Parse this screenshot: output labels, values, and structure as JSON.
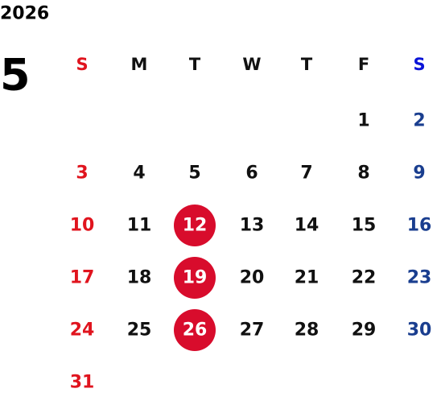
{
  "year": "2026",
  "month": "5",
  "weekdays": [
    "S",
    "M",
    "T",
    "W",
    "T",
    "F",
    "S"
  ],
  "weeks": [
    [
      null,
      null,
      null,
      null,
      null,
      1,
      2
    ],
    [
      3,
      4,
      5,
      6,
      7,
      8,
      9
    ],
    [
      10,
      11,
      12,
      13,
      14,
      15,
      16
    ],
    [
      17,
      18,
      19,
      20,
      21,
      22,
      23
    ],
    [
      24,
      25,
      26,
      27,
      28,
      29,
      30
    ],
    [
      31,
      null,
      null,
      null,
      null,
      null,
      null
    ]
  ],
  "marked_days": [
    12,
    19,
    26
  ],
  "colors": {
    "sunday": "#e0141e",
    "saturday_header": "#0a14d8",
    "saturday": "#1a3e8f",
    "weekday": "#111111",
    "mark": "#d80c2c",
    "mark_text": "#ffffff"
  }
}
